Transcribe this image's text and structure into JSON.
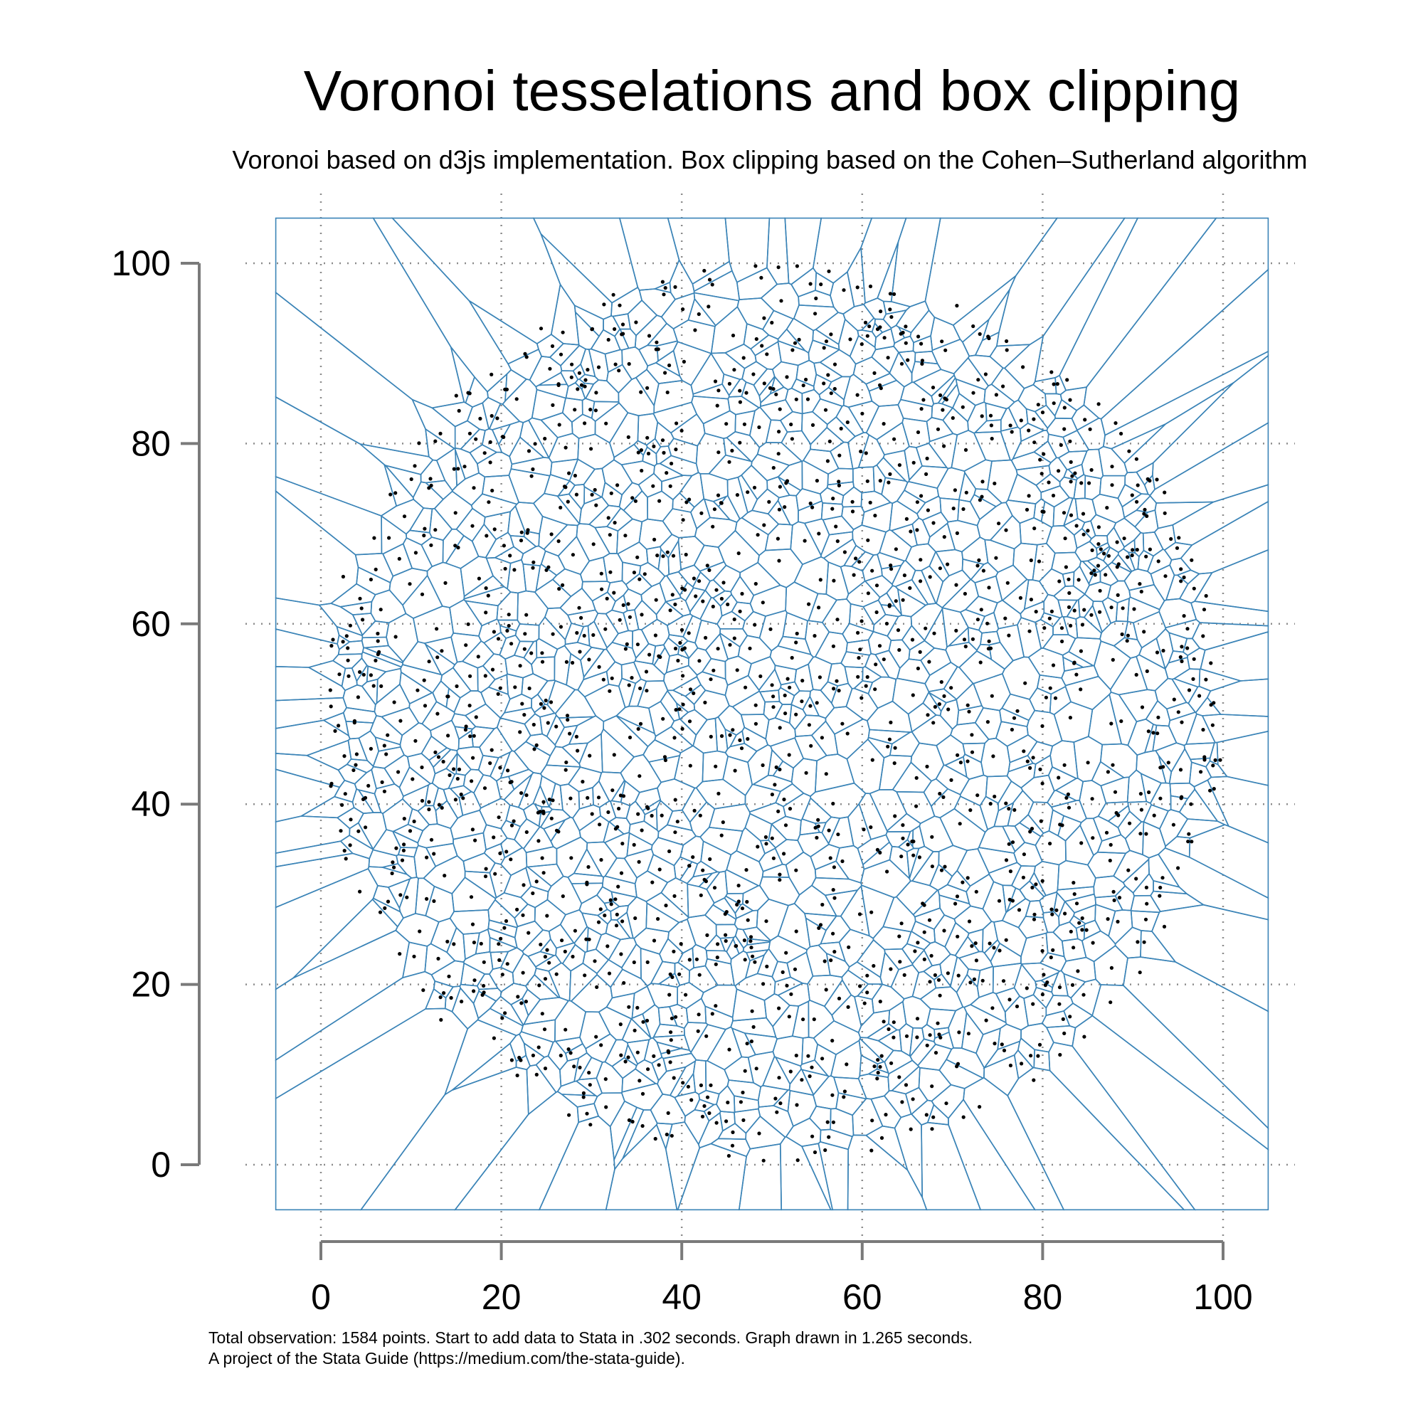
{
  "chart_data": {
    "type": "voronoi",
    "title": "Voronoi tesselations and box clipping",
    "subtitle": "Voronoi based on d3js implementation. Box clipping based on the Cohen–Sutherland algorithm",
    "xlabel": "",
    "ylabel": "",
    "xlim": [
      0,
      100
    ],
    "ylim": [
      0,
      100
    ],
    "clip_box": {
      "x": [
        -5,
        105
      ],
      "y": [
        -5,
        105
      ]
    },
    "x_ticks": [
      0,
      20,
      40,
      60,
      80,
      100
    ],
    "y_ticks": [
      0,
      20,
      40,
      60,
      80,
      100
    ],
    "x_tick_labels": [
      "0",
      "20",
      "40",
      "60",
      "80",
      "100"
    ],
    "y_tick_labels": [
      "0",
      "20",
      "40",
      "60",
      "80",
      "100"
    ],
    "grid": true,
    "point_count": 1584,
    "point_distribution": {
      "shape": "disc",
      "center": [
        50,
        50
      ],
      "radius": 50
    },
    "colors": {
      "cell_edges": "#3b84b7",
      "points": "#000000",
      "axes": "#7a7a7a",
      "grid": "#8c8c8c"
    }
  },
  "notes": [
    "Total observation: 1584 points. Start to add data to Stata in .302 seconds. Graph drawn in 1.265 seconds.",
    "A project of the Stata Guide (https://medium.com/the-stata-guide)."
  ]
}
